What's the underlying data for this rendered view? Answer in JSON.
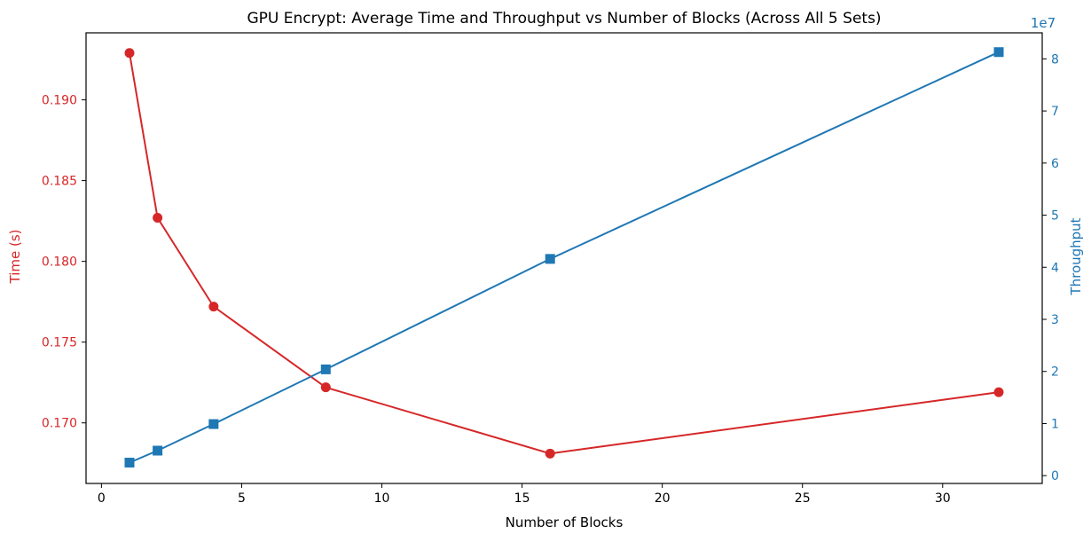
{
  "chart_data": {
    "type": "line",
    "title": "GPU Encrypt: Average Time and Throughput vs Number of Blocks (Across All 5 Sets)",
    "xlabel": "Number of Blocks",
    "x": [
      1,
      2,
      4,
      8,
      16,
      32
    ],
    "xlim": [
      -0.55,
      33.55
    ],
    "xticks": [
      0,
      5,
      10,
      15,
      20,
      25,
      30
    ],
    "xtick_labels": [
      "0",
      "5",
      "10",
      "15",
      "20",
      "25",
      "30"
    ],
    "grid": false,
    "left_axis": {
      "label": "Time (s)",
      "color": "#d62728",
      "ylim": [
        0.16625,
        0.19415
      ],
      "ticks": [
        0.17,
        0.175,
        0.18,
        0.185,
        0.19
      ],
      "tick_labels": [
        "0.170",
        "0.175",
        "0.180",
        "0.185",
        "0.190"
      ]
    },
    "right_axis": {
      "label": "Throughput",
      "color": "#1f77b4",
      "offset_text": "1e7",
      "ylim": [
        -1500000,
        85000000
      ],
      "ticks": [
        0,
        10000000,
        20000000,
        30000000,
        40000000,
        50000000,
        60000000,
        70000000,
        80000000
      ],
      "tick_labels": [
        "0",
        "1",
        "2",
        "3",
        "4",
        "5",
        "6",
        "7",
        "8"
      ]
    },
    "series": [
      {
        "axis": "left",
        "marker": "circle",
        "color": "#d62728",
        "values": [
          0.1929,
          0.1827,
          0.1772,
          0.1722,
          0.1681,
          0.1719
        ]
      },
      {
        "axis": "right",
        "marker": "square",
        "color": "#1f77b4",
        "values": [
          2500000,
          4800000,
          9900000,
          20400000,
          41600000,
          81300000
        ]
      }
    ]
  }
}
